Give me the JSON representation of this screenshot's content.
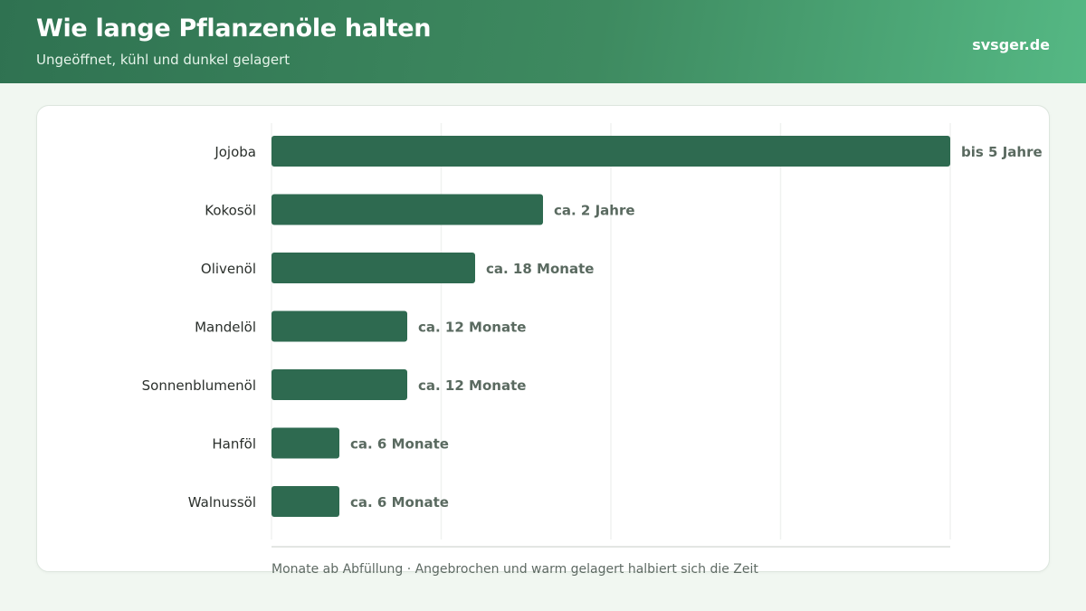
{
  "header": {
    "title": "Wie lange Pflanzenöle halten",
    "subtitle": "Ungeöffnet, kühl und dunkel gelagert",
    "brand": "svsger.de"
  },
  "colors": {
    "bar": "#2e6a50",
    "grid": "#f0f2f0",
    "axis": "#e3e6e3"
  },
  "chart_data": {
    "type": "bar",
    "orientation": "horizontal",
    "unit": "Monate",
    "xlim": [
      0,
      60
    ],
    "grid": true,
    "categories": [
      "Jojoba",
      "Kokosöl",
      "Olivenöl",
      "Mandelöl",
      "Sonnenblumenöl",
      "Hanföl",
      "Walnussöl"
    ],
    "values": [
      60,
      24,
      18,
      12,
      12,
      6,
      6
    ],
    "value_labels": [
      "bis 5 Jahre",
      "ca. 2 Jahre",
      "ca. 18 Monate",
      "ca. 12 Monate",
      "ca. 12 Monate",
      "ca. 6 Monate",
      "ca. 6 Monate"
    ],
    "xlabel": "Monate ab Abfüllung · Angebrochen und warm gelagert halbiert sich die Zeit"
  }
}
